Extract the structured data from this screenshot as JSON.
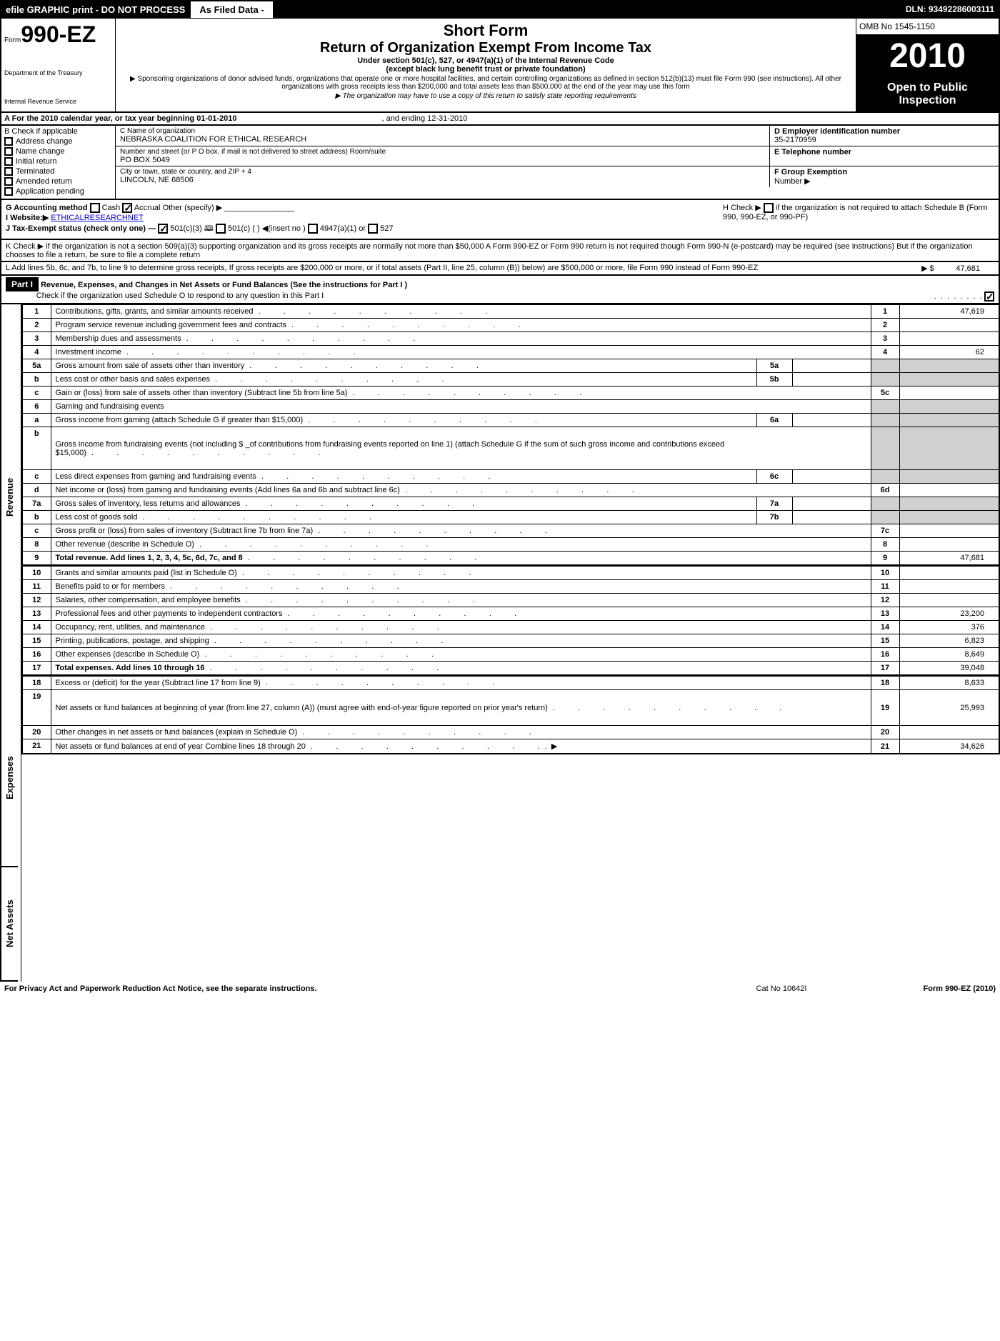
{
  "topbar": {
    "left": "efile GRAPHIC print - DO NOT PROCESS",
    "mid": "As Filed Data -",
    "dln": "DLN: 93492286003111"
  },
  "header": {
    "form_prefix": "Form",
    "form_number": "990-EZ",
    "dept1": "Department of the Treasury",
    "dept2": "Internal Revenue Service",
    "title1": "Short Form",
    "title2": "Return of Organization Exempt From Income Tax",
    "sub1": "Under section 501(c), 527, or 4947(a)(1) of the Internal Revenue Code",
    "sub2": "(except black lung benefit trust or private foundation)",
    "note1": "▶ Sponsoring organizations of donor advised funds, organizations that operate one or more hospital facilities, and certain controlling organizations as defined in section 512(b)(13) must file Form 990 (see instructions). All other organizations with gross receipts less than $200,000 and total assets less than $500,000 at the end of the year may use this form",
    "note2": "▶ The organization may have to use a copy of this return to satisfy state reporting requirements",
    "omb": "OMB No 1545-1150",
    "year": "2010",
    "open_pub1": "Open to Public",
    "open_pub2": "Inspection"
  },
  "rowA": {
    "label": "A  For the 2010 calendar year, or tax year beginning 01-01-2010",
    "ending": ", and ending 12-31-2010"
  },
  "colB": {
    "header": "B  Check if applicable",
    "items": [
      "Address change",
      "Name change",
      "Initial return",
      "Terminated",
      "Amended return",
      "Application pending"
    ]
  },
  "colC": {
    "name_label": "C Name of organization",
    "name_val": "NEBRASKA COALITION FOR ETHICAL RESEARCH",
    "addr_label": "Number and street (or P O box, if mail is not delivered to street address) Room/suite",
    "addr_val": "PO BOX 5049",
    "city_label": "City or town, state or country, and ZIP + 4",
    "city_val": "LINCOLN, NE  68506"
  },
  "colD": {
    "ein_label": "D Employer identification number",
    "ein_val": "35-2170959",
    "tel_label": "E Telephone number",
    "grp_label": "F Group Exemption",
    "grp_label2": "Number ▶"
  },
  "rowG": {
    "g": "G Accounting method",
    "cash": "Cash",
    "accrual": "Accrual",
    "other": "Other (specify) ▶",
    "i": "I Website:▶",
    "website": "ETHICALRESEARCHNET",
    "j": "J Tax-Exempt status (check only one) —",
    "j1": "501(c)(3)",
    "j2": "501(c) (   ) ◀(insert no )",
    "j3": "4947(a)(1) or",
    "j4": "527",
    "h": "H  Check ▶",
    "h_text": "if the organization is not required to attach Schedule B (Form 990, 990-EZ, or 990-PF)"
  },
  "rowK": "K Check ▶      if the organization is not a section 509(a)(3) supporting organization and its gross receipts are normally not more than $50,000  A Form 990-EZ or Form 990 return is not required though Form 990-N (e-postcard) may be required (see instructions)  But if the organization chooses to file a return, be sure to file a complete return",
  "rowL": {
    "text": "L Add lines 5b, 6c, and 7b, to line 9 to determine gross receipts, If gross receipts are $200,000 or more, or if total assets (Part II, line 25, column (B)) below) are $500,000 or more, file Form 990 instead of Form 990-EZ",
    "arrow": "▶ $",
    "val": "47,681"
  },
  "part1": {
    "label": "Part I",
    "title": "Revenue, Expenses, and Changes in Net Assets or Fund Balances (See the instructions for Part I )",
    "check_text": "Check if the organization used Schedule O to respond to any question in this Part I"
  },
  "sections": {
    "revenue": "Revenue",
    "expenses": "Expenses",
    "netassets": "Net Assets"
  },
  "lines": [
    {
      "n": "1",
      "desc": "Contributions, gifts, grants, and similar amounts received",
      "amt": "47,619"
    },
    {
      "n": "2",
      "desc": "Program service revenue including government fees and contracts",
      "amt": ""
    },
    {
      "n": "3",
      "desc": "Membership dues and assessments",
      "amt": ""
    },
    {
      "n": "4",
      "desc": "Investment income",
      "amt": "62"
    },
    {
      "n": "5a",
      "desc": "Gross amount from sale of assets other than inventory",
      "sub": "5a",
      "subval": ""
    },
    {
      "n": "b",
      "desc": "Less  cost or other basis and sales expenses",
      "sub": "5b",
      "subval": ""
    },
    {
      "n": "c",
      "desc": "Gain or (loss) from sale of assets other than inventory (Subtract line 5b from line 5a)",
      "amtnum": "5c",
      "amt": ""
    },
    {
      "n": "6",
      "desc": "Gaming and fundraising events",
      "grey": true
    },
    {
      "n": "a",
      "desc": "Gross income from gaming (attach Schedule G if greater than $15,000)",
      "sub": "6a",
      "subval": ""
    },
    {
      "n": "b",
      "desc": "Gross income from fundraising events (not including $ _of contributions from fundraising events reported on line 1) (attach Schedule G if the sum of such gross income and contributions exceed $15,000)",
      "tall": true
    },
    {
      "n": "c",
      "desc": "Less  direct expenses from gaming and fundraising events",
      "sub": "6c",
      "subval": ""
    },
    {
      "n": "d",
      "desc": "Net income or (loss) from gaming and fundraising events (Add lines 6a and 6b and subtract line 6c)",
      "amtnum": "6d",
      "amt": ""
    },
    {
      "n": "7a",
      "desc": "Gross sales of inventory, less returns and allowances",
      "sub": "7a",
      "subval": ""
    },
    {
      "n": "b",
      "desc": "Less  cost of goods sold",
      "sub": "7b",
      "subval": ""
    },
    {
      "n": "c",
      "desc": "Gross profit or (loss) from sales of inventory (Subtract line 7b from line 7a)",
      "amtnum": "7c",
      "amt": ""
    },
    {
      "n": "8",
      "desc": "Other revenue (describe in Schedule O)",
      "amt": ""
    },
    {
      "n": "9",
      "desc": "Total revenue. Add lines 1, 2, 3, 4, 5c, 6d, 7c, and 8",
      "bold": true,
      "amt": "47,681"
    }
  ],
  "exp_lines": [
    {
      "n": "10",
      "desc": "Grants and similar amounts paid (list in Schedule O)",
      "amt": ""
    },
    {
      "n": "11",
      "desc": "Benefits paid to or for members",
      "amt": ""
    },
    {
      "n": "12",
      "desc": "Salaries, other compensation, and employee benefits",
      "amt": ""
    },
    {
      "n": "13",
      "desc": "Professional fees and other payments to independent contractors",
      "amt": "23,200"
    },
    {
      "n": "14",
      "desc": "Occupancy, rent, utilities, and maintenance",
      "amt": "376"
    },
    {
      "n": "15",
      "desc": "Printing, publications, postage, and shipping",
      "amt": "6,823"
    },
    {
      "n": "16",
      "desc": "Other expenses (describe in Schedule O)",
      "amt": "8,649"
    },
    {
      "n": "17",
      "desc": "Total expenses. Add lines 10 through 16",
      "bold": true,
      "amt": "39,048"
    }
  ],
  "na_lines": [
    {
      "n": "18",
      "desc": "Excess or (deficit) for the year (Subtract line 17 from line 9)",
      "amt": "8,633"
    },
    {
      "n": "19",
      "desc": "Net assets or fund balances at beginning of year (from line 27, column (A)) (must agree with end-of-year figure reported on prior year's return)",
      "amt": "25,993",
      "tall": true
    },
    {
      "n": "20",
      "desc": "Other changes in net assets or fund balances (explain in Schedule O)",
      "amt": ""
    },
    {
      "n": "21",
      "desc": "Net assets or fund balances at end of year  Combine lines 18 through 20",
      "amt": "34,626",
      "arrow": true
    }
  ],
  "footer": {
    "left": "For Privacy Act and Paperwork Reduction Act Notice, see the separate instructions.",
    "mid": "Cat No 10642I",
    "right": "Form 990-EZ (2010)"
  }
}
